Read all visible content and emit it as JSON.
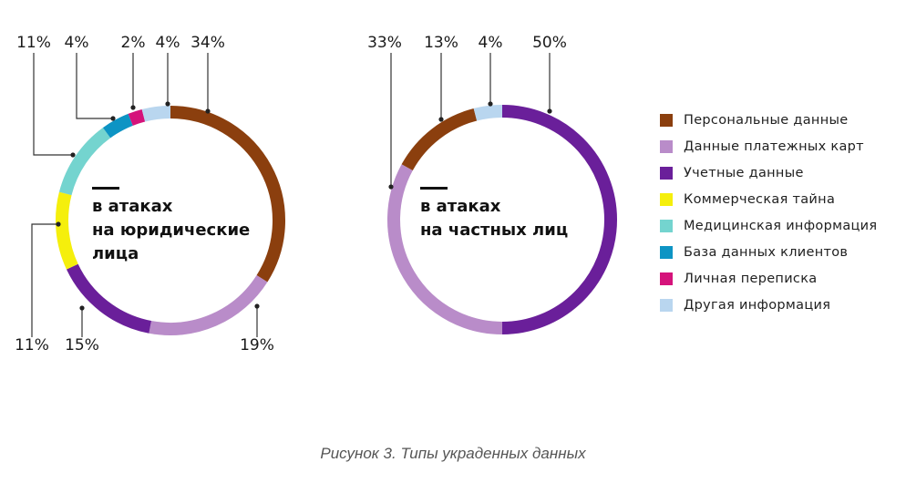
{
  "chart_data": [
    {
      "type": "pie",
      "title": "в атаках на юридические лица",
      "title_lines": [
        "в атаках",
        "на юридические",
        "лица"
      ],
      "slices": [
        {
          "category": "Персональные данные",
          "value": 34,
          "label": "34%"
        },
        {
          "category": "Данные платежных карт",
          "value": 19,
          "label": "19%"
        },
        {
          "category": "Учетные данные",
          "value": 15,
          "label": "15%"
        },
        {
          "category": "Коммерческая тайна",
          "value": 11,
          "label": "11%"
        },
        {
          "category": "Медицинская информация",
          "value": 11,
          "label": "11%"
        },
        {
          "category": "База данных клиентов",
          "value": 4,
          "label": "4%"
        },
        {
          "category": "Личная переписка",
          "value": 2,
          "label": "2%"
        },
        {
          "category": "Другая информация",
          "value": 4,
          "label": "4%"
        }
      ]
    },
    {
      "type": "pie",
      "title": "в атаках на частных лиц",
      "title_lines": [
        "в атаках",
        "на частных лиц"
      ],
      "slices": [
        {
          "category": "Учетные данные",
          "value": 50,
          "label": "50%"
        },
        {
          "category": "Данные платежных карт",
          "value": 33,
          "label": "33%"
        },
        {
          "category": "Персональные данные",
          "value": 13,
          "label": "13%"
        },
        {
          "category": "Другая информация",
          "value": 4,
          "label": "4%"
        }
      ]
    }
  ],
  "legend": [
    {
      "label": "Персональные данные",
      "color": "#8b3f0e"
    },
    {
      "label": "Данные платежных карт",
      "color": "#b98cc9"
    },
    {
      "label": "Учетные данные",
      "color": "#6a1f9a"
    },
    {
      "label": "Коммерческая тайна",
      "color": "#f5ef0c"
    },
    {
      "label": "Медицинская информация",
      "color": "#74d4cf"
    },
    {
      "label": "База данных клиентов",
      "color": "#0d94c4"
    },
    {
      "label": "Личная переписка",
      "color": "#d5137b"
    },
    {
      "label": "Другая информация",
      "color": "#b9d6ef"
    }
  ],
  "caption": "Рисунок 3. Типы украденных данных"
}
